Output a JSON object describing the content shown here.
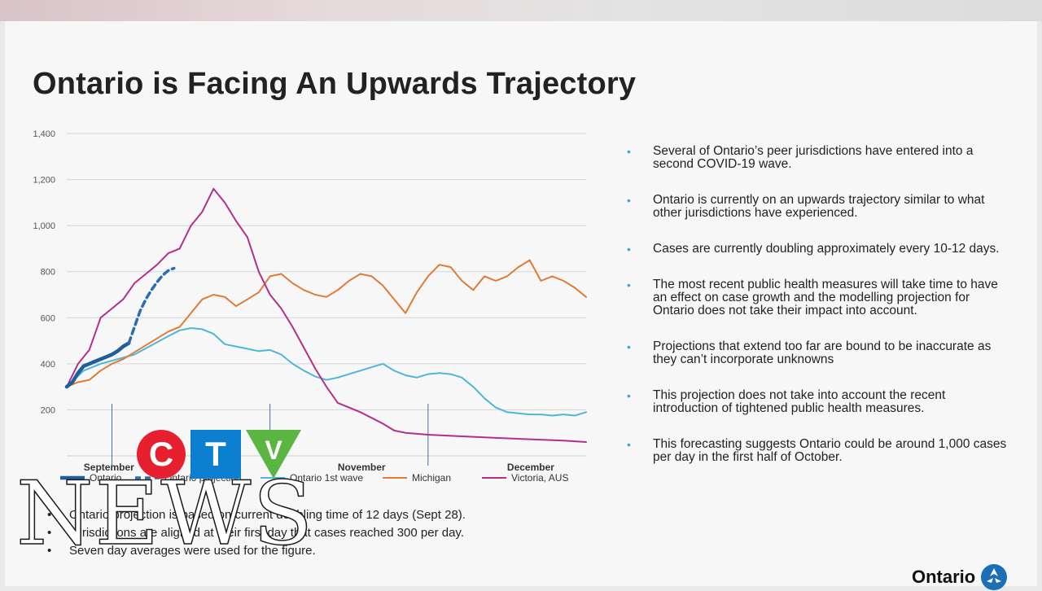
{
  "slide": {
    "title": "Ontario is Facing An Upwards Trajectory",
    "bullets": [
      "Several of Ontario’s peer jurisdictions have entered into a second COVID-19 wave.",
      "Ontario is currently on an upwards trajectory similar to what other jurisdictions have experienced.",
      "Cases are currently doubling approximately every 10-12 days.",
      "The most recent public health measures will take time to have an effect on case growth and the modelling projection for Ontario does not take their impact into account.",
      "Projections that extend too far are bound to be inaccurate as they can’t incorporate unknowns",
      "This projection does not take into account the recent introduction of tightened public health measures.",
      "This forecasting suggests Ontario could be around 1,000 cases per day in the first half of October."
    ],
    "notes": [
      "Ontario projection is based on current doubling time of 12 days (Sept 28).",
      "Jurisdictions are aligned at their first day that cases reached 300 per day.",
      "Seven day averages were used for the figure."
    ],
    "logo_text": "Ontario"
  },
  "overlay": {
    "ctv_letters": [
      "C",
      "T",
      "V"
    ],
    "news_text": "NEWS",
    "colors": {
      "red": "#e6202e",
      "blue": "#0d7fd0",
      "green": "#5bb543"
    }
  },
  "chart_data": {
    "type": "line",
    "ylim": [
      0,
      1400
    ],
    "yticks": [
      200,
      400,
      600,
      800,
      1000,
      1200,
      1400
    ],
    "ytick_labels": [
      "200",
      "400",
      "600",
      "800",
      "1,000",
      "1,200",
      "1,400"
    ],
    "xlim": [
      0,
      92
    ],
    "month_labels": [
      {
        "label": "September",
        "x": 3
      },
      {
        "label": "November",
        "x": 48
      },
      {
        "label": "December",
        "x": 78
      }
    ],
    "month_dividers": [
      8,
      36,
      64
    ],
    "grid": true,
    "legend_position": "bottom",
    "series": [
      {
        "name": "Ontario",
        "color": "#1f5e99",
        "width": 4.5,
        "dash": "",
        "x": [
          0,
          1,
          2,
          3,
          4,
          5,
          6,
          7,
          8,
          9,
          10,
          11
        ],
        "y": [
          300,
          320,
          360,
          390,
          400,
          410,
          420,
          430,
          440,
          455,
          475,
          490
        ]
      },
      {
        "name": "Ontario projection",
        "color": "#2a6db0",
        "width": 3.5,
        "dash": "7,5",
        "x": [
          11,
          12,
          13,
          14,
          15,
          16,
          17,
          18,
          19
        ],
        "y": [
          490,
          560,
          630,
          680,
          720,
          755,
          785,
          805,
          815
        ]
      },
      {
        "name": "Ontario 1st wave",
        "color": "#4fb6d8",
        "width": 2,
        "x": [
          0,
          3,
          6,
          9,
          12,
          15,
          18,
          20,
          22,
          24,
          26,
          28,
          30,
          32,
          34,
          36,
          38,
          40,
          42,
          44,
          46,
          48,
          50,
          52,
          54,
          56,
          58,
          60,
          62,
          64,
          66,
          68,
          70,
          72,
          74,
          76,
          78,
          80,
          82,
          84,
          86,
          88,
          90,
          92
        ],
        "y": [
          300,
          370,
          400,
          420,
          440,
          480,
          520,
          545,
          555,
          550,
          530,
          485,
          475,
          465,
          455,
          460,
          440,
          400,
          370,
          345,
          330,
          340,
          355,
          370,
          385,
          400,
          370,
          350,
          340,
          355,
          360,
          355,
          340,
          300,
          250,
          210,
          190,
          185,
          180,
          180,
          175,
          180,
          175,
          190
        ]
      },
      {
        "name": "Michigan",
        "color": "#e07b35",
        "width": 2,
        "x": [
          0,
          2,
          4,
          6,
          8,
          10,
          12,
          14,
          16,
          18,
          20,
          22,
          24,
          26,
          28,
          30,
          32,
          34,
          36,
          38,
          40,
          42,
          44,
          46,
          48,
          50,
          52,
          54,
          56,
          58,
          60,
          62,
          64,
          66,
          68,
          70,
          72,
          74,
          76,
          78,
          80,
          82,
          84,
          86,
          88,
          90,
          92
        ],
        "y": [
          300,
          320,
          330,
          370,
          400,
          420,
          450,
          480,
          510,
          540,
          560,
          620,
          680,
          700,
          690,
          650,
          680,
          710,
          780,
          790,
          750,
          720,
          700,
          690,
          720,
          760,
          790,
          780,
          740,
          680,
          620,
          710,
          780,
          830,
          820,
          760,
          720,
          780,
          760,
          780,
          820,
          850,
          760,
          780,
          760,
          730,
          690
        ]
      },
      {
        "name": "Victoria, AUS",
        "color": "#b3308a",
        "width": 2,
        "x": [
          0,
          2,
          4,
          6,
          8,
          10,
          12,
          14,
          16,
          18,
          20,
          22,
          24,
          26,
          28,
          30,
          32,
          34,
          36,
          38,
          40,
          42,
          44,
          46,
          48,
          50,
          52,
          54,
          56,
          58,
          60,
          64,
          70,
          76,
          82,
          88,
          92
        ],
        "y": [
          300,
          400,
          460,
          600,
          640,
          680,
          750,
          790,
          830,
          880,
          900,
          1000,
          1060,
          1160,
          1100,
          1020,
          950,
          800,
          700,
          640,
          560,
          470,
          380,
          300,
          230,
          210,
          190,
          165,
          140,
          110,
          100,
          92,
          85,
          78,
          72,
          66,
          60
        ]
      }
    ]
  }
}
